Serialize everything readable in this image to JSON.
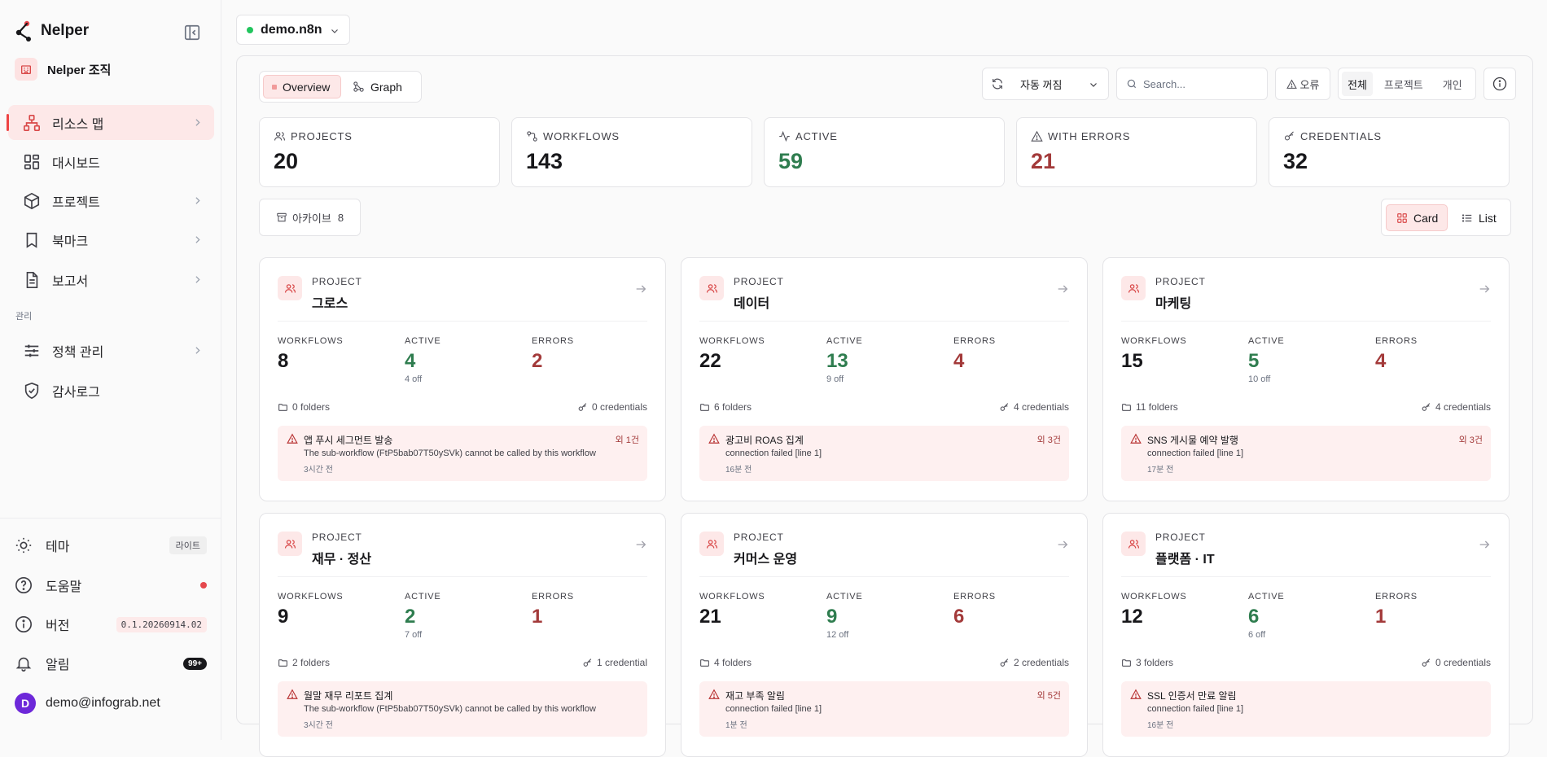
{
  "app": {
    "name": "Nelper",
    "org": "Nelper 조직"
  },
  "sidebar": {
    "items": [
      {
        "label": "리소스 맵"
      },
      {
        "label": "대시보드"
      },
      {
        "label": "프로젝트"
      },
      {
        "label": "북마크"
      },
      {
        "label": "보고서"
      }
    ],
    "admin_label": "관리",
    "admin_items": [
      {
        "label": "정책 관리"
      },
      {
        "label": "감사로그"
      }
    ],
    "footer": {
      "theme": {
        "label": "테마",
        "value": "라이트"
      },
      "help": {
        "label": "도움말"
      },
      "version": {
        "label": "버전",
        "value": "0.1.20260914.02"
      },
      "alerts": {
        "label": "알림",
        "count": "99+"
      },
      "user": {
        "initial": "D",
        "email": "demo@infograb.net"
      }
    }
  },
  "env": {
    "label": "demo.n8n",
    "status_color": "#22c55e"
  },
  "toolbar": {
    "views": {
      "overview": "Overview",
      "graph": "Graph"
    },
    "auto_refresh": "자동 꺼짐",
    "search_placeholder": "Search...",
    "errors": "오류",
    "scope": {
      "all": "전체",
      "project": "프로젝트",
      "personal": "개인"
    }
  },
  "stats": [
    {
      "label": "PROJECTS",
      "value": "20",
      "icon": "users-icon"
    },
    {
      "label": "WORKFLOWS",
      "value": "143",
      "icon": "workflow-icon"
    },
    {
      "label": "ACTIVE",
      "value": "59",
      "icon": "activity-icon",
      "tone": "green"
    },
    {
      "label": "WITH ERRORS",
      "value": "21",
      "icon": "alert-triangle-icon",
      "tone": "red"
    },
    {
      "label": "CREDENTIALS",
      "value": "32",
      "icon": "key-icon"
    }
  ],
  "archive": {
    "label": "아카이브",
    "count": "8"
  },
  "layout_toggle": {
    "card": "Card",
    "list": "List"
  },
  "metric_labels": {
    "workflows": "WORKFLOWS",
    "active": "ACTIVE",
    "errors": "ERRORS"
  },
  "project_kicker": "PROJECT",
  "projects": [
    {
      "name": "그로스",
      "workflows": "8",
      "active": "4",
      "off": "4 off",
      "errors": "2",
      "folders": "0 folders",
      "credentials": "0 credentials",
      "alert": {
        "title": "앱 푸시 세그먼트 발송",
        "more": "외 1건",
        "message": "The sub-workflow (FtP5bab07T50ySVk) cannot be called by this workflow",
        "time": "3시간 전"
      }
    },
    {
      "name": "데이터",
      "workflows": "22",
      "active": "13",
      "off": "9 off",
      "errors": "4",
      "folders": "6 folders",
      "credentials": "4 credentials",
      "alert": {
        "title": "광고비 ROAS 집계",
        "more": "외 3건",
        "message": "connection failed [line 1]",
        "time": "16분 전"
      }
    },
    {
      "name": "마케팅",
      "workflows": "15",
      "active": "5",
      "off": "10 off",
      "errors": "4",
      "folders": "11 folders",
      "credentials": "4 credentials",
      "alert": {
        "title": "SNS 게시물 예약 발행",
        "more": "외 3건",
        "message": "connection failed [line 1]",
        "time": "17분 전"
      }
    },
    {
      "name": "재무 · 정산",
      "workflows": "9",
      "active": "2",
      "off": "7 off",
      "errors": "1",
      "folders": "2 folders",
      "credentials": "1 credential",
      "alert": {
        "title": "월말 재무 리포트 집계",
        "more": "",
        "message": "The sub-workflow (FtP5bab07T50ySVk) cannot be called by this workflow",
        "time": "3시간 전"
      }
    },
    {
      "name": "커머스 운영",
      "workflows": "21",
      "active": "9",
      "off": "12 off",
      "errors": "6",
      "folders": "4 folders",
      "credentials": "2 credentials",
      "alert": {
        "title": "재고 부족 알림",
        "more": "외 5건",
        "message": "connection failed [line 1]",
        "time": "1분 전"
      }
    },
    {
      "name": "플랫폼 · IT",
      "workflows": "12",
      "active": "6",
      "off": "6 off",
      "errors": "1",
      "folders": "3 folders",
      "credentials": "0 credentials",
      "alert": {
        "title": "SSL 인증서 만료 알림",
        "more": "",
        "message": "connection failed [line 1]",
        "time": "16분 전"
      }
    }
  ]
}
